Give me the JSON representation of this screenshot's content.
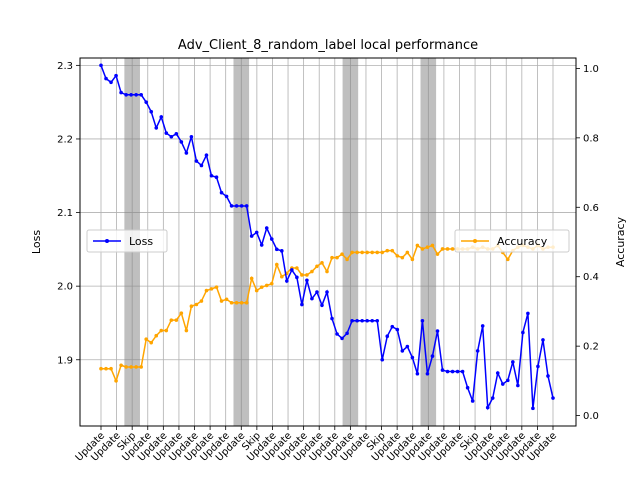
{
  "chart_data": {
    "type": "line",
    "title": "Adv_Client_8_random_label local performance",
    "ylabel_left": "Loss",
    "ylabel_right": "Accuracy",
    "ylim_left": [
      1.81,
      2.31
    ],
    "ylim_right": [
      -0.03,
      1.03
    ],
    "yticks_left": [
      1.9,
      2.0,
      2.1,
      2.2,
      2.3
    ],
    "yticks_right": [
      0.0,
      0.2,
      0.4,
      0.6,
      0.8,
      1.0
    ],
    "ytick_labels_left": [
      "1.9",
      "2.0",
      "2.1",
      "2.2",
      "2.3"
    ],
    "ytick_labels_right": [
      "0.0",
      "0.2",
      "0.4",
      "0.6",
      "0.8",
      "1.0"
    ],
    "grid": true,
    "x_tick_labels": [
      "Update",
      "Update",
      "Skip",
      "Update",
      "Update",
      "Update",
      "Update",
      "Update",
      "Update",
      "Update",
      "Skip",
      "Update",
      "Update",
      "Update",
      "Update",
      "Update",
      "Update",
      "Update",
      "Skip",
      "Update",
      "Update",
      "Update",
      "Update",
      "Update",
      "Skip",
      "Update",
      "Update",
      "Update",
      "Update",
      "Update"
    ],
    "skip_rounds": [
      2,
      9,
      16,
      21
    ],
    "series": [
      {
        "name": "Loss",
        "color": "#0000ff",
        "axis": "left",
        "legend_position": "center-left",
        "values": [
          2.3,
          2.282,
          2.277,
          2.286,
          2.263,
          2.26,
          2.26,
          2.26,
          2.26,
          2.25,
          2.237,
          2.215,
          2.23,
          2.208,
          2.203,
          2.207,
          2.196,
          2.181,
          2.203,
          2.17,
          2.164,
          2.178,
          2.15,
          2.148,
          2.127,
          2.122,
          2.109,
          2.109,
          2.109,
          2.109,
          2.068,
          2.073,
          2.056,
          2.079,
          2.064,
          2.05,
          2.048,
          2.007,
          2.022,
          2.012,
          1.975,
          2.008,
          1.983,
          1.992,
          1.974,
          1.992,
          1.956,
          1.935,
          1.929,
          1.936,
          1.953,
          1.953,
          1.953,
          1.953,
          1.953,
          1.953,
          1.9,
          1.932,
          1.945,
          1.941,
          1.912,
          1.918,
          1.903,
          1.881,
          1.953,
          1.881,
          1.905,
          1.939,
          1.886,
          1.884,
          1.884,
          1.884,
          1.884,
          1.862,
          1.844,
          1.912,
          1.946,
          1.835,
          1.848,
          1.882,
          1.867,
          1.872,
          1.897,
          1.865,
          1.937,
          1.963,
          1.834,
          1.891,
          1.927,
          1.878,
          1.848
        ]
      },
      {
        "name": "Accuracy",
        "color": "#ffa500",
        "axis": "right",
        "legend_position": "center-right",
        "values": [
          0.135,
          0.135,
          0.135,
          0.1,
          0.145,
          0.14,
          0.14,
          0.14,
          0.14,
          0.22,
          0.21,
          0.23,
          0.245,
          0.245,
          0.275,
          0.275,
          0.295,
          0.245,
          0.315,
          0.32,
          0.33,
          0.36,
          0.365,
          0.37,
          0.33,
          0.335,
          0.325,
          0.325,
          0.325,
          0.325,
          0.395,
          0.36,
          0.37,
          0.375,
          0.38,
          0.435,
          0.4,
          0.41,
          0.425,
          0.425,
          0.405,
          0.405,
          0.415,
          0.43,
          0.44,
          0.415,
          0.455,
          0.455,
          0.465,
          0.45,
          0.47,
          0.47,
          0.47,
          0.47,
          0.47,
          0.47,
          0.47,
          0.475,
          0.475,
          0.46,
          0.455,
          0.47,
          0.45,
          0.49,
          0.48,
          0.485,
          0.49,
          0.465,
          0.48,
          0.48,
          0.48,
          0.48,
          0.48,
          0.48,
          0.485,
          0.48,
          0.485,
          0.48,
          0.48,
          0.49,
          0.47,
          0.45,
          0.475,
          0.485,
          0.49,
          0.485,
          0.48,
          0.49,
          0.48,
          0.485,
          0.485
        ]
      }
    ]
  }
}
